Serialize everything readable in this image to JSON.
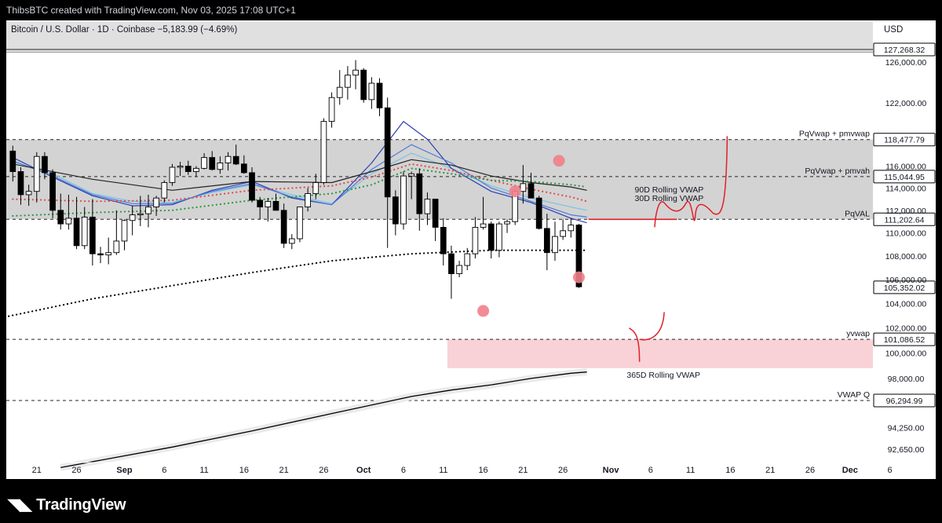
{
  "attribution": "ThibsBTC created with TradingView.com, Nov 03, 2025 17:08 UTC+1",
  "symbol_line": "Bitcoin / U.S. Dollar · 1D · Coinbase  −5,183.99 (−4.69%)",
  "currency": "USD",
  "brand": "TradingView",
  "colors": {
    "up": "#ffffff",
    "down": "#000000",
    "candle_border": "#000000",
    "zone_fill": "#d3d3d3",
    "pink_zone": "#f8d2d6",
    "hand_drawn": "#e0202a",
    "vwap_dark_blue": "#2b3fb3",
    "vwap_blue": "#4b7bd9",
    "vwap_light_blue": "#78c3e6",
    "vwap_black": "#222222",
    "markers": "#f0808a"
  },
  "chart_data": {
    "type": "candlestick",
    "y_axis": {
      "min": 91300,
      "max": 128500,
      "scale": "log",
      "label": "USD",
      "ticks": [
        92650,
        94250,
        96294.99,
        98000,
        100000,
        101086.52,
        102000,
        104000,
        105352.02,
        106000,
        108000,
        110000,
        111202.64,
        112000,
        114000,
        115044.95,
        116000,
        118477.79,
        122000,
        126000,
        127268.32
      ],
      "tick_labels": [
        "92,650.00",
        "94,250.00",
        "96,294.99",
        "98,000.00",
        "100,000.00",
        "101,086.52",
        "102,000.00",
        "104,000.00",
        "105,352.02",
        "106,000.00",
        "108,000.00",
        "110,000.00",
        "111,202.64",
        "112,000.00",
        "114,000.00",
        "115,044.95",
        "116,000.00",
        "118,477.79",
        "122,000.00",
        "126,000.00",
        "127,268.32"
      ],
      "boxed": [
        127268.32,
        118477.79,
        115044.95,
        111202.64,
        105352.02,
        101086.52,
        96294.99
      ]
    },
    "x_axis": {
      "start_date": "2025-08-18",
      "ticks": [
        {
          "d": 3,
          "label": "21"
        },
        {
          "d": 8,
          "label": "26"
        },
        {
          "d": 14,
          "label": "Sep"
        },
        {
          "d": 19,
          "label": "6"
        },
        {
          "d": 24,
          "label": "11"
        },
        {
          "d": 29,
          "label": "16"
        },
        {
          "d": 34,
          "label": "21"
        },
        {
          "d": 39,
          "label": "26"
        },
        {
          "d": 44,
          "label": "Oct"
        },
        {
          "d": 49,
          "label": "6"
        },
        {
          "d": 54,
          "label": "11"
        },
        {
          "d": 59,
          "label": "16"
        },
        {
          "d": 64,
          "label": "21"
        },
        {
          "d": 69,
          "label": "26"
        },
        {
          "d": 75,
          "label": "Nov"
        },
        {
          "d": 80,
          "label": "6"
        },
        {
          "d": 85,
          "label": "11"
        },
        {
          "d": 90,
          "label": "16"
        },
        {
          "d": 95,
          "label": "21"
        },
        {
          "d": 100,
          "label": "26"
        },
        {
          "d": 105,
          "label": "Dec"
        },
        {
          "d": 110,
          "label": "6"
        }
      ]
    },
    "candles": [
      [
        117400,
        117900,
        114600,
        115500
      ],
      [
        115500,
        115900,
        112500,
        113400
      ],
      [
        113400,
        114300,
        112400,
        113700
      ],
      [
        113700,
        117300,
        112700,
        116900
      ],
      [
        116900,
        117300,
        114800,
        115400
      ],
      [
        115400,
        115700,
        111300,
        112000
      ],
      [
        112000,
        113500,
        110300,
        110800
      ],
      [
        110800,
        113400,
        110300,
        111300
      ],
      [
        111300,
        113200,
        108600,
        108900
      ],
      [
        108900,
        112300,
        108600,
        111400
      ],
      [
        111400,
        113000,
        107200,
        108200
      ],
      [
        108200,
        108800,
        107400,
        108100
      ],
      [
        108100,
        109600,
        107300,
        108300
      ],
      [
        108300,
        112000,
        108100,
        109300
      ],
      [
        109300,
        111200,
        108500,
        111100
      ],
      [
        111100,
        112400,
        109800,
        111600
      ],
      [
        111600,
        113300,
        110600,
        111700
      ],
      [
        111700,
        113400,
        110500,
        112300
      ],
      [
        112300,
        113300,
        111500,
        113100
      ],
      [
        113100,
        114700,
        112700,
        114500
      ],
      [
        114500,
        116200,
        114200,
        115900
      ],
      [
        115900,
        116400,
        115100,
        116000
      ],
      [
        116000,
        116500,
        115200,
        115500
      ],
      [
        115500,
        116000,
        115000,
        115800
      ],
      [
        115800,
        117200,
        115700,
        116800
      ],
      [
        116800,
        117400,
        115600,
        115700
      ],
      [
        115700,
        116900,
        115300,
        116300
      ],
      [
        116300,
        117300,
        115600,
        116900
      ],
      [
        116900,
        118000,
        116100,
        116200
      ],
      [
        116200,
        117000,
        115300,
        115400
      ],
      [
        115400,
        115900,
        112700,
        112900
      ],
      [
        112900,
        113200,
        111200,
        112300
      ],
      [
        112300,
        113100,
        111000,
        112800
      ],
      [
        112800,
        113500,
        112000,
        112000
      ],
      [
        112000,
        112600,
        108700,
        109100
      ],
      [
        109100,
        109900,
        108600,
        109500
      ],
      [
        109500,
        112300,
        109200,
        112300
      ],
      [
        112300,
        114000,
        111900,
        113500
      ],
      [
        113500,
        115300,
        113000,
        114500
      ],
      [
        114500,
        120500,
        114300,
        120200
      ],
      [
        120200,
        123000,
        119600,
        122500
      ],
      [
        122500,
        125200,
        121800,
        123500
      ],
      [
        123500,
        125600,
        122300,
        124700
      ],
      [
        124700,
        126200,
        123300,
        125200
      ],
      [
        125200,
        125400,
        122000,
        122300
      ],
      [
        122300,
        124500,
        121400,
        123900
      ],
      [
        123900,
        124400,
        120700,
        121500
      ],
      [
        121500,
        122500,
        108700,
        113200
      ],
      [
        113200,
        113800,
        109800,
        110800
      ],
      [
        110800,
        115500,
        110300,
        115100
      ],
      [
        115100,
        115500,
        113000,
        115300
      ],
      [
        115300,
        115800,
        110200,
        111700
      ],
      [
        111700,
        113600,
        110700,
        113000
      ],
      [
        113000,
        113000,
        109300,
        110500
      ],
      [
        110500,
        111300,
        107200,
        108200
      ],
      [
        108200,
        108900,
        104400,
        106500
      ],
      [
        106500,
        107600,
        106200,
        107200
      ],
      [
        107200,
        108700,
        106800,
        108200
      ],
      [
        108200,
        111400,
        107800,
        110500
      ],
      [
        110500,
        113200,
        110300,
        110800
      ],
      [
        110800,
        111000,
        107800,
        108500
      ],
      [
        108500,
        111000,
        107900,
        110800
      ],
      [
        110800,
        111200,
        110000,
        111000
      ],
      [
        111000,
        113900,
        110700,
        113700
      ],
      [
        113700,
        116100,
        112600,
        114400
      ],
      [
        114400,
        115400,
        113100,
        113100
      ],
      [
        113100,
        113300,
        110300,
        110400
      ],
      [
        110400,
        111700,
        106800,
        108300
      ],
      [
        108300,
        111000,
        107600,
        109700
      ],
      [
        109700,
        111200,
        109400,
        110200
      ],
      [
        110200,
        111300,
        109600,
        110700
      ],
      [
        110700,
        110800,
        105300,
        105400
      ]
    ],
    "series": [
      {
        "name": "30D Rolling VWAP",
        "color": "#78c3e6",
        "d": [
          0,
          5,
          10,
          15,
          20,
          25,
          30,
          35,
          40,
          45,
          50,
          55,
          60,
          65,
          70,
          72
        ],
        "values": [
          116400,
          115300,
          113500,
          112800,
          112700,
          113600,
          114300,
          113400,
          112600,
          115300,
          117200,
          115800,
          114200,
          113100,
          112300,
          112000
        ]
      },
      {
        "name": "",
        "color": "#2b3fb3",
        "d": [
          0,
          5,
          10,
          15,
          20,
          25,
          30,
          35,
          40,
          45,
          49,
          52,
          55,
          60,
          65,
          70,
          72
        ],
        "values": [
          116800,
          115000,
          113300,
          112400,
          112500,
          113800,
          114600,
          113100,
          112500,
          116300,
          120200,
          118500,
          115800,
          113700,
          112700,
          111300,
          110900
        ]
      },
      {
        "name": "",
        "color": "#4b7bd9",
        "d": [
          0,
          5,
          10,
          15,
          20,
          25,
          30,
          35,
          40,
          45,
          50,
          55,
          60,
          65,
          70,
          72
        ],
        "values": [
          116500,
          115100,
          113400,
          112600,
          112600,
          113700,
          114400,
          113200,
          112500,
          115700,
          118000,
          116300,
          114000,
          112800,
          111600,
          111400
        ]
      },
      {
        "name": "90D Rolling VWAP",
        "color": "#222222",
        "d": [
          0,
          10,
          20,
          30,
          40,
          45,
          50,
          55,
          60,
          65,
          70,
          72
        ],
        "values": [
          116200,
          114800,
          113800,
          114600,
          114500,
          115500,
          116600,
          116100,
          115100,
          114500,
          114100,
          113800
        ]
      },
      {
        "name": "",
        "color": "#e04b4b",
        "dotted": true,
        "d": [
          0,
          10,
          20,
          30,
          40,
          45,
          50,
          55,
          60,
          65,
          70,
          72
        ],
        "values": [
          113000,
          112800,
          112900,
          113800,
          114200,
          115000,
          116200,
          115600,
          114700,
          113900,
          113200,
          112800
        ]
      },
      {
        "name": "",
        "color": "#2a9a3c",
        "dotted": true,
        "d": [
          0,
          10,
          20,
          30,
          40,
          45,
          50,
          55,
          60,
          65,
          70,
          72
        ],
        "values": [
          111500,
          111800,
          112000,
          112900,
          113500,
          114300,
          115800,
          115300,
          114700,
          114600,
          114300,
          114100
        ]
      },
      {
        "name": "",
        "color": "#000000",
        "dotted": true,
        "d": [
          -1,
          10,
          20,
          30,
          40,
          50,
          60,
          70,
          72
        ],
        "values": [
          102900,
          104400,
          105500,
          106600,
          107600,
          108200,
          108500,
          108500,
          108500
        ]
      },
      {
        "name": "365D Rolling VWAP",
        "color": "#000000",
        "d": [
          6,
          20,
          30,
          40,
          50,
          55,
          60,
          65,
          70,
          72
        ],
        "values": [
          91300,
          92800,
          94000,
          95300,
          96600,
          97100,
          97500,
          98000,
          98400,
          98500
        ]
      }
    ],
    "horizontal_levels": [
      {
        "value": 118477.79,
        "label": "PqVwap + pmvwap"
      },
      {
        "value": 115044.95,
        "label": "PqVwap + pmvah"
      },
      {
        "value": 111202.64,
        "label": "PqVAL"
      },
      {
        "value": 101086.52,
        "label": "yvwap"
      },
      {
        "value": 96294.99,
        "label": "VWAP Q"
      }
    ],
    "zones": [
      {
        "from": 111202.64,
        "to": 118477.79,
        "color": "#d3d3d3"
      },
      {
        "from": 98800,
        "to": 101086.52,
        "color": "#f8d2d6",
        "d_start": 54.5
      }
    ],
    "markers": [
      {
        "d": 59,
        "value": 103400
      },
      {
        "d": 63,
        "value": 113700
      },
      {
        "d": 68.5,
        "value": 116500
      },
      {
        "d": 71,
        "value": 106200
      }
    ],
    "annotations": [
      {
        "text": "90D Rolling VWAP",
        "d": 78,
        "value": 113900
      },
      {
        "text": "30D Rolling VWAP",
        "d": 78,
        "value": 113100
      },
      {
        "text": "365D Rolling VWAP",
        "d": 77,
        "value": 98300
      }
    ]
  }
}
